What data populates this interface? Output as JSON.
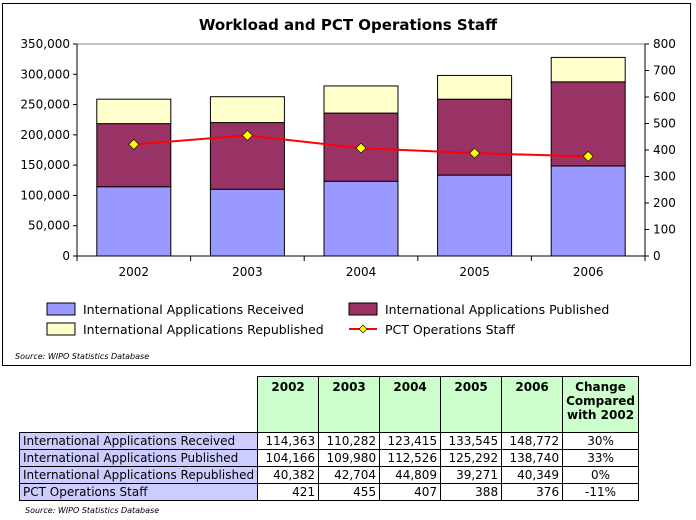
{
  "chart_data": {
    "type": "bar",
    "title": "Workload and PCT Operations Staff",
    "categories": [
      "2002",
      "2003",
      "2004",
      "2005",
      "2006"
    ],
    "series": [
      {
        "name": "International Applications Received",
        "values": [
          114363,
          110282,
          123415,
          133545,
          148772
        ],
        "color": "#9999ff",
        "axis": "left"
      },
      {
        "name": "International Applications Published",
        "values": [
          104166,
          109980,
          112526,
          125292,
          138740
        ],
        "color": "#993366",
        "axis": "left"
      },
      {
        "name": "International Applications Republished",
        "values": [
          40382,
          42704,
          44809,
          39271,
          40349
        ],
        "color": "#ffffcc",
        "axis": "left"
      },
      {
        "name": "PCT Operations Staff",
        "values": [
          421,
          455,
          407,
          388,
          376
        ],
        "color": "#ff0000",
        "marker_color": "#ffff00",
        "type": "line",
        "axis": "right"
      }
    ],
    "stacked": true,
    "ylim": [
      0,
      350000
    ],
    "yticks": [
      "0",
      "50,000",
      "100,000",
      "150,000",
      "200,000",
      "250,000",
      "300,000",
      "350,000"
    ],
    "y2lim": [
      0,
      800
    ],
    "y2ticks": [
      "0",
      "100",
      "200",
      "300",
      "400",
      "500",
      "600",
      "700",
      "800"
    ],
    "grid": false,
    "legend_position": "bottom",
    "source": "Source: WIPO Statistics Database"
  },
  "table": {
    "headers": [
      "2002",
      "2003",
      "2004",
      "2005",
      "2006"
    ],
    "change_header_lines": [
      "Change",
      "Compared",
      "with 2002"
    ],
    "rows": [
      {
        "label": "International Applications Received",
        "values": [
          "114,363",
          "110,282",
          "123,415",
          "133,545",
          "148,772"
        ],
        "change": "30%"
      },
      {
        "label": "International Applications Published",
        "values": [
          "104,166",
          "109,980",
          "112,526",
          "125,292",
          "138,740"
        ],
        "change": "33%"
      },
      {
        "label": "International Applications Republished",
        "values": [
          "40,382",
          "42,704",
          "44,809",
          "39,271",
          "40,349"
        ],
        "change": "0%"
      },
      {
        "label": "PCT Operations Staff",
        "values": [
          "421",
          "455",
          "407",
          "388",
          "376"
        ],
        "change": "-11%"
      }
    ],
    "source": "Source: WIPO Statistics Database"
  }
}
